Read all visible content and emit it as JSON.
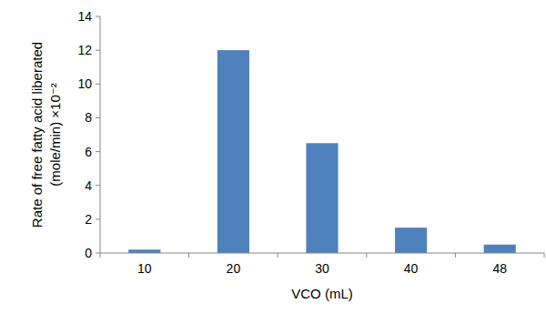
{
  "chart_data": {
    "type": "bar",
    "y_label": [
      "Rate of free fatty acid liberated",
      "(mole/min) ×10⁻²"
    ],
    "x_label": "VCO (mL)",
    "categories": [
      "10",
      "20",
      "30",
      "40",
      "48"
    ],
    "values": [
      0.2,
      12,
      6.5,
      1.5,
      0.5
    ],
    "color": "#4f81bd",
    "ylim": [
      0,
      14
    ],
    "yticks": [
      0,
      2,
      4,
      6,
      8,
      10,
      12,
      14
    ],
    "grid": false
  }
}
